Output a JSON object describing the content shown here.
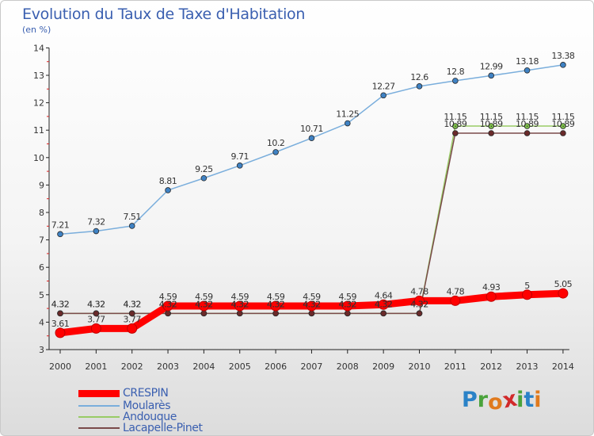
{
  "header": {
    "title": "Evolution du Taux de Taxe d'Habitation",
    "subtitle": "(en %)"
  },
  "brand": {
    "name": "Proxiti",
    "letters": [
      "P",
      "r",
      "o",
      "x",
      "i",
      "t",
      "i"
    ],
    "letter_colors": [
      "#2a82c7",
      "#4aa33b",
      "#e07a1e",
      "#d12a2a",
      "#4aa33b",
      "#2a82c7",
      "#e07a1e"
    ]
  },
  "chart_data": {
    "type": "line",
    "x": [
      "2000",
      "2001",
      "2002",
      "2003",
      "2004",
      "2005",
      "2006",
      "2007",
      "2008",
      "2009",
      "2010",
      "2011",
      "2012",
      "2013",
      "2014"
    ],
    "ylim": [
      3,
      14
    ],
    "y_ticks": [
      "3",
      "4",
      "5",
      "6",
      "7",
      "8",
      "9",
      "10",
      "11",
      "12",
      "13",
      "14"
    ],
    "grid": false,
    "legend_position": "bottom-left",
    "series": [
      {
        "name": "CRESPIN",
        "color": "#ff0000",
        "values": [
          3.61,
          3.77,
          3.77,
          4.59,
          4.59,
          4.59,
          4.59,
          4.59,
          4.59,
          4.64,
          4.78,
          4.78,
          4.93,
          5,
          5.05
        ],
        "labels": [
          "3.61",
          "3.77",
          "3.77",
          "4.59",
          "4.59",
          "4.59",
          "4.59",
          "4.59",
          "4.59",
          "4.64",
          "4.78",
          "4.78",
          "4.93",
          "5",
          "5.05"
        ]
      },
      {
        "name": "Moularès",
        "color": "#7aaedc",
        "values": [
          7.21,
          7.32,
          7.51,
          8.81,
          9.25,
          9.71,
          10.2,
          10.71,
          11.25,
          12.27,
          12.6,
          12.8,
          12.99,
          13.18,
          13.38
        ],
        "labels": [
          "7.21",
          "7.32",
          "7.51",
          "8.81",
          "9.25",
          "9.71",
          "10.2",
          "10.71",
          "11.25",
          "12.27",
          "12.6",
          "12.8",
          "12.99",
          "13.18",
          "13.38"
        ]
      },
      {
        "name": "Andouque",
        "color": "#99cc66",
        "values": [
          4.32,
          4.32,
          4.32,
          4.32,
          4.32,
          4.32,
          4.32,
          4.32,
          4.32,
          4.32,
          4.32,
          11.15,
          11.15,
          11.15,
          11.15
        ],
        "labels": [
          "4.32",
          "4.32",
          "4.32",
          "4.32",
          "4.32",
          "4.32",
          "4.32",
          "4.32",
          "4.32",
          "4.32",
          "4.32",
          "11.15",
          "11.15",
          "11.15",
          "11.15"
        ]
      },
      {
        "name": "Lacapelle-Pinet",
        "color": "#7a4a4a",
        "values": [
          4.32,
          4.32,
          4.32,
          4.32,
          4.32,
          4.32,
          4.32,
          4.32,
          4.32,
          4.32,
          4.32,
          10.89,
          10.89,
          10.89,
          10.89
        ],
        "labels": [
          "4.32",
          "4.32",
          "4.32",
          "4.32",
          "4.32",
          "4.32",
          "4.32",
          "4.32",
          "4.32",
          "4.32",
          "4.32",
          "10.89",
          "10.89",
          "10.89",
          "10.89"
        ]
      }
    ]
  }
}
